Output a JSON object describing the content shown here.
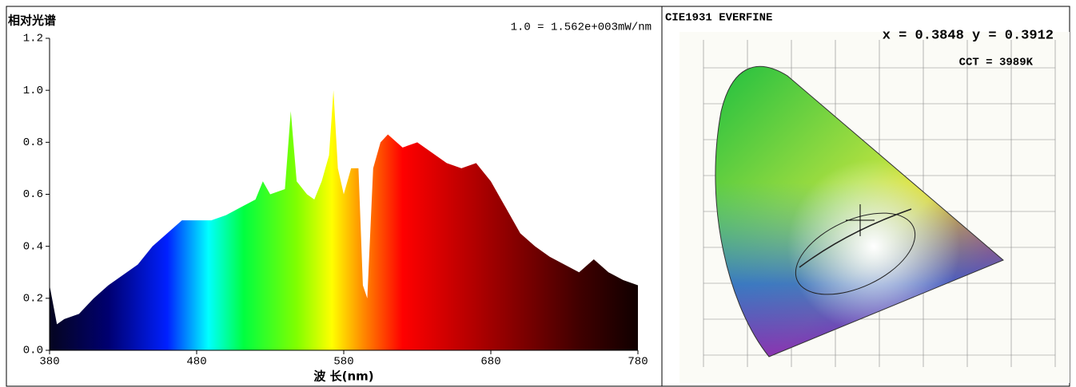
{
  "chart_data": {
    "type": "area",
    "title": "相对光谱",
    "annotation": "1.0 = 1.562e+003mW/nm",
    "x_label": "波 长(nm)",
    "x": [
      380,
      385,
      390,
      400,
      410,
      420,
      430,
      440,
      450,
      460,
      470,
      480,
      490,
      500,
      510,
      520,
      525,
      530,
      540,
      544,
      548,
      555,
      560,
      565,
      570,
      573,
      576,
      580,
      585,
      590,
      593,
      596,
      600,
      605,
      610,
      620,
      630,
      640,
      650,
      660,
      670,
      680,
      690,
      700,
      710,
      720,
      730,
      740,
      750,
      760,
      770,
      780
    ],
    "values": [
      0.25,
      0.1,
      0.12,
      0.14,
      0.2,
      0.25,
      0.29,
      0.33,
      0.4,
      0.45,
      0.5,
      0.5,
      0.5,
      0.52,
      0.55,
      0.58,
      0.65,
      0.6,
      0.62,
      0.92,
      0.65,
      0.6,
      0.58,
      0.65,
      0.75,
      1.0,
      0.7,
      0.6,
      0.7,
      0.7,
      0.25,
      0.2,
      0.7,
      0.8,
      0.83,
      0.78,
      0.8,
      0.76,
      0.72,
      0.7,
      0.72,
      0.65,
      0.55,
      0.45,
      0.4,
      0.36,
      0.33,
      0.3,
      0.35,
      0.3,
      0.27,
      0.25
    ],
    "xlim": [
      380,
      780
    ],
    "xticks": [
      380,
      480,
      580,
      680,
      780
    ],
    "ylim": [
      0,
      1.2
    ],
    "yticks": [
      {
        "value": 0,
        "label": "0.0"
      },
      0.2,
      0.4,
      0.6,
      0.8,
      {
        "value": 1,
        "label": "1.0"
      },
      1.2
    ]
  },
  "cie_panel": {
    "title": "CIE1931  EVERFINE",
    "coordinates": "x = 0.3848 y = 0.3912",
    "cct": "CCT = 3989K"
  }
}
